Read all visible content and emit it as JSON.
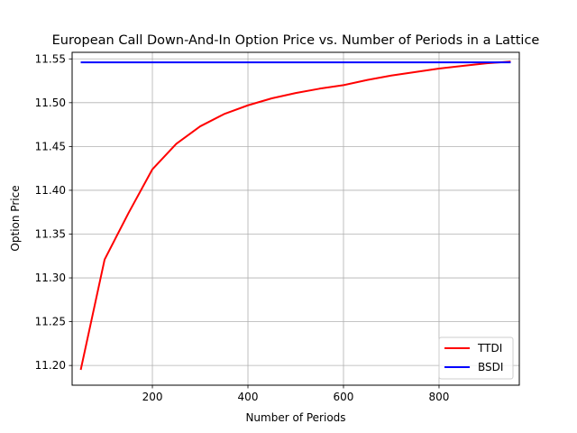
{
  "chart_data": {
    "type": "line",
    "title": "European Call Down-And-In Option Price vs. Number of Periods in a Lattice",
    "xlabel": "Number of Periods",
    "ylabel": "Option Price",
    "xlim": [
      32,
      968
    ],
    "ylim": [
      11.1775,
      11.5575
    ],
    "xticks": [
      200,
      400,
      600,
      800
    ],
    "yticks": [
      11.2,
      11.25,
      11.3,
      11.35,
      11.4,
      11.45,
      11.5,
      11.55
    ],
    "ytick_labels": [
      "11.20",
      "11.25",
      "11.30",
      "11.35",
      "11.40",
      "11.45",
      "11.50",
      "11.55"
    ],
    "grid": true,
    "legend_position": "lower-right",
    "series": [
      {
        "name": "TTDI",
        "color": "#ff0000",
        "x": [
          50,
          100,
          150,
          200,
          250,
          300,
          350,
          400,
          450,
          500,
          550,
          600,
          650,
          700,
          750,
          800,
          850,
          900,
          950
        ],
        "y": [
          11.195,
          11.321,
          11.374,
          11.424,
          11.453,
          11.473,
          11.487,
          11.497,
          11.505,
          11.511,
          11.516,
          11.52,
          11.526,
          11.531,
          11.535,
          11.539,
          11.542,
          11.545,
          11.547
        ]
      },
      {
        "name": "BSDI",
        "color": "#0000ff",
        "x": [
          50,
          950
        ],
        "y": [
          11.546,
          11.546
        ]
      }
    ]
  }
}
